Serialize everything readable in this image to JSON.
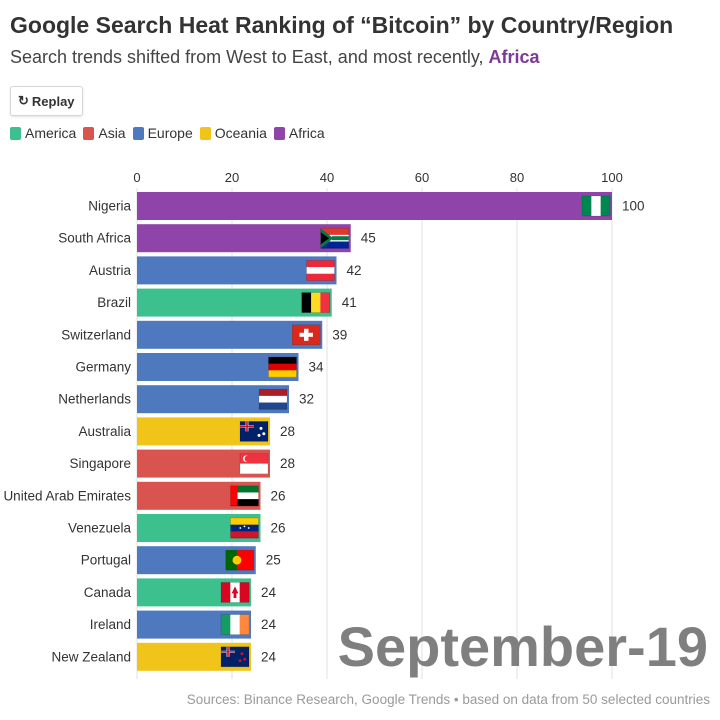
{
  "header": {
    "title": "Google Search Heat Ranking of “Bitcoin” by Country/Region",
    "subtitle_prefix": "Search trends shifted from West to East, and most recently, ",
    "subtitle_highlight": "Africa"
  },
  "controls": {
    "replay_label": "Replay",
    "replay_icon": "replay-icon"
  },
  "legend": [
    {
      "label": "America",
      "color": "#3cc08e"
    },
    {
      "label": "Asia",
      "color": "#d9534f"
    },
    {
      "label": "Europe",
      "color": "#4e79bf"
    },
    {
      "label": "Oceania",
      "color": "#f0c419"
    },
    {
      "label": "Africa",
      "color": "#8e44a8"
    }
  ],
  "watermark": "September-19",
  "source": "Sources: Binance Research, Google Trends • based on data from 50 selected countries",
  "chart_data": {
    "type": "bar",
    "orientation": "horizontal",
    "categories": [
      "Nigeria",
      "South Africa",
      "Austria",
      "Brazil",
      "Switzerland",
      "Germany",
      "Netherlands",
      "Australia",
      "Singapore",
      "United Arab Emirates",
      "Venezuela",
      "Portugal",
      "Canada",
      "Ireland",
      "New Zealand"
    ],
    "values": [
      100,
      45,
      42,
      41,
      39,
      34,
      32,
      28,
      28,
      26,
      26,
      25,
      24,
      24,
      24
    ],
    "regions": [
      "Africa",
      "Africa",
      "Europe",
      "America",
      "Europe",
      "Europe",
      "Europe",
      "Oceania",
      "Asia",
      "Asia",
      "America",
      "Europe",
      "America",
      "Europe",
      "Oceania"
    ],
    "xlim": [
      0,
      100
    ],
    "xticks": [
      0,
      20,
      40,
      60,
      80,
      100
    ],
    "grid": true,
    "legend_position": "top-left",
    "date_label": "September-19"
  }
}
